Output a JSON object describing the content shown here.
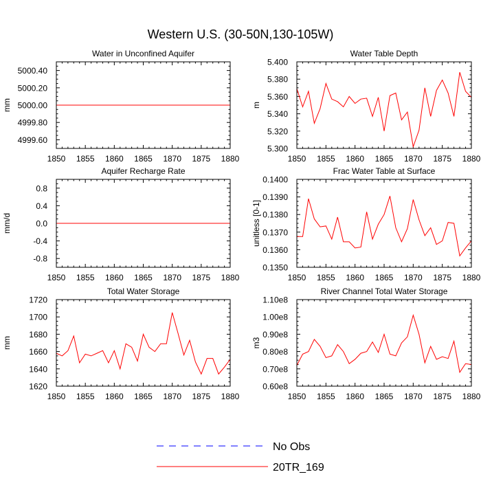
{
  "title": "Western U.S. (30-50N,130-105W)",
  "colors": {
    "model": "#ff0000",
    "obs": "#0000ff",
    "axis": "#000000"
  },
  "legend": {
    "placement": "bottom-center",
    "entries": [
      {
        "label": "No Obs",
        "style": "dashed",
        "color": "#0000ff"
      },
      {
        "label": "20TR_169",
        "style": "solid",
        "color": "#ff0000"
      }
    ]
  },
  "chart_data": [
    {
      "type": "line",
      "title": "Water in Unconfined Aquifer",
      "ylabel": "mm",
      "xlim": [
        1850,
        1880
      ],
      "ylim": [
        4999.5,
        5000.5
      ],
      "xticks": [
        1850,
        1855,
        1860,
        1865,
        1870,
        1875,
        1880
      ],
      "xtick_labels": [
        "1850",
        "1855",
        "1860",
        "1865",
        "1870",
        "1875",
        "1880"
      ],
      "yticks": [
        4999.6,
        4999.8,
        5000.0,
        5000.2,
        5000.4
      ],
      "ytick_labels": [
        "4999.60",
        "4999.80",
        "5000.00",
        "5000.20",
        "5000.40"
      ],
      "series": [
        {
          "name": "20TR_169",
          "x": [
            1850,
            1880
          ],
          "values": [
            5000.0,
            5000.0
          ]
        }
      ]
    },
    {
      "type": "line",
      "title": "Water Table Depth",
      "ylabel": "m",
      "xlim": [
        1850,
        1880
      ],
      "ylim": [
        5.3,
        5.4
      ],
      "xticks": [
        1850,
        1855,
        1860,
        1865,
        1870,
        1875,
        1880
      ],
      "xtick_labels": [
        "1850",
        "1855",
        "1860",
        "1865",
        "1870",
        "1875",
        "1880"
      ],
      "yticks": [
        5.3,
        5.32,
        5.34,
        5.36,
        5.38,
        5.4
      ],
      "ytick_labels": [
        "5.300",
        "5.320",
        "5.340",
        "5.360",
        "5.380",
        "5.400"
      ],
      "series": [
        {
          "name": "20TR_169",
          "x": [
            1850,
            1851,
            1852,
            1853,
            1854,
            1855,
            1856,
            1857,
            1858,
            1859,
            1860,
            1861,
            1862,
            1863,
            1864,
            1865,
            1866,
            1867,
            1868,
            1869,
            1870,
            1871,
            1872,
            1873,
            1874,
            1875,
            1876,
            1877,
            1878,
            1879,
            1880
          ],
          "values": [
            5.369,
            5.348,
            5.366,
            5.329,
            5.346,
            5.375,
            5.357,
            5.354,
            5.348,
            5.36,
            5.352,
            5.357,
            5.358,
            5.337,
            5.359,
            5.32,
            5.361,
            5.364,
            5.333,
            5.342,
            5.302,
            5.321,
            5.37,
            5.337,
            5.367,
            5.379,
            5.364,
            5.337,
            5.388,
            5.366,
            5.359
          ]
        }
      ]
    },
    {
      "type": "line",
      "title": "Aquifer Recharge Rate",
      "ylabel": "mm/d",
      "xlim": [
        1850,
        1880
      ],
      "ylim": [
        -1.0,
        1.0
      ],
      "xticks": [
        1850,
        1855,
        1860,
        1865,
        1870,
        1875,
        1880
      ],
      "xtick_labels": [
        "1850",
        "1855",
        "1860",
        "1865",
        "1870",
        "1875",
        "1880"
      ],
      "yticks": [
        -0.8,
        -0.4,
        0.0,
        0.4,
        0.8
      ],
      "ytick_labels": [
        "-0.8",
        "-0.4",
        "0.0",
        "0.4",
        "0.8"
      ],
      "series": [
        {
          "name": "20TR_169",
          "x": [
            1850,
            1880
          ],
          "values": [
            0.0,
            0.0
          ]
        }
      ]
    },
    {
      "type": "line",
      "title": "Frac Water Table at Surface",
      "ylabel": "unitless [0-1]",
      "xlim": [
        1850,
        1880
      ],
      "ylim": [
        0.135,
        0.14
      ],
      "xticks": [
        1850,
        1855,
        1860,
        1865,
        1870,
        1875,
        1880
      ],
      "xtick_labels": [
        "1850",
        "1855",
        "1860",
        "1865",
        "1870",
        "1875",
        "1880"
      ],
      "yticks": [
        0.135,
        0.136,
        0.137,
        0.138,
        0.139,
        0.14
      ],
      "ytick_labels": [
        "0.1350",
        "0.1360",
        "0.1370",
        "0.1380",
        "0.1390",
        "0.1400"
      ],
      "series": [
        {
          "name": "20TR_169",
          "x": [
            1850,
            1851,
            1852,
            1853,
            1854,
            1855,
            1856,
            1857,
            1858,
            1859,
            1860,
            1861,
            1862,
            1863,
            1864,
            1865,
            1866,
            1867,
            1868,
            1869,
            1870,
            1871,
            1872,
            1873,
            1874,
            1875,
            1876,
            1877,
            1878,
            1879,
            1880
          ],
          "values": [
            0.13675,
            0.13675,
            0.1389,
            0.13775,
            0.1373,
            0.13735,
            0.1366,
            0.13785,
            0.13645,
            0.13645,
            0.1361,
            0.13615,
            0.13815,
            0.1366,
            0.13745,
            0.138,
            0.13905,
            0.13725,
            0.13645,
            0.1372,
            0.13885,
            0.1377,
            0.1368,
            0.13725,
            0.1363,
            0.1365,
            0.13755,
            0.1375,
            0.13565,
            0.1361,
            0.1365
          ]
        }
      ]
    },
    {
      "type": "line",
      "title": "Total Water Storage",
      "ylabel": "mm",
      "xlim": [
        1850,
        1880
      ],
      "ylim": [
        1620,
        1720
      ],
      "xticks": [
        1850,
        1855,
        1860,
        1865,
        1870,
        1875,
        1880
      ],
      "xtick_labels": [
        "1850",
        "1855",
        "1860",
        "1865",
        "1870",
        "1875",
        "1880"
      ],
      "yticks": [
        1620,
        1640,
        1660,
        1680,
        1700,
        1720
      ],
      "ytick_labels": [
        "1620",
        "1640",
        "1660",
        "1680",
        "1700",
        "1720"
      ],
      "series": [
        {
          "name": "20TR_169",
          "x": [
            1850,
            1851,
            1852,
            1853,
            1854,
            1855,
            1856,
            1857,
            1858,
            1859,
            1860,
            1861,
            1862,
            1863,
            1864,
            1865,
            1866,
            1867,
            1868,
            1869,
            1870,
            1871,
            1872,
            1873,
            1874,
            1875,
            1876,
            1877,
            1878,
            1879,
            1880
          ],
          "values": [
            1658,
            1655,
            1661,
            1678,
            1647,
            1657,
            1655,
            1658,
            1661,
            1647,
            1661,
            1640,
            1669,
            1665,
            1649,
            1680,
            1665,
            1660,
            1669,
            1669,
            1705,
            1681,
            1656,
            1673,
            1648,
            1634,
            1652,
            1652,
            1634,
            1642,
            1651
          ]
        }
      ]
    },
    {
      "type": "line",
      "title": "River Channel Total Water Storage",
      "ylabel": "m3",
      "xlim": [
        1850,
        1880
      ],
      "ylim": [
        60000000.0,
        110000000.0
      ],
      "xticks": [
        1850,
        1855,
        1860,
        1865,
        1870,
        1875,
        1880
      ],
      "xtick_labels": [
        "1850",
        "1855",
        "1860",
        "1865",
        "1870",
        "1875",
        "1880"
      ],
      "yticks": [
        60000000.0,
        70000000.0,
        80000000.0,
        90000000.0,
        100000000.0,
        110000000.0
      ],
      "ytick_labels": [
        "0.60e8",
        "0.70e8",
        "0.80e8",
        "0.90e8",
        "1.00e8",
        "1.10e8"
      ],
      "series": [
        {
          "name": "20TR_169",
          "x": [
            1850,
            1851,
            1852,
            1853,
            1854,
            1855,
            1856,
            1857,
            1858,
            1859,
            1860,
            1861,
            1862,
            1863,
            1864,
            1865,
            1866,
            1867,
            1868,
            1869,
            1870,
            1871,
            1872,
            1873,
            1874,
            1875,
            1876,
            1877,
            1878,
            1879,
            1880
          ],
          "values": [
            72000000.0,
            78500000.0,
            80000000.0,
            87000000.0,
            83000000.0,
            76500000.0,
            77500000.0,
            84000000.0,
            80000000.0,
            73000000.0,
            75500000.0,
            79000000.0,
            80000000.0,
            85500000.0,
            79500000.0,
            90000000.0,
            78500000.0,
            77500000.0,
            85000000.0,
            88500000.0,
            101000000.0,
            90000000.0,
            73500000.0,
            83000000.0,
            75500000.0,
            77000000.0,
            76000000.0,
            86000000.0,
            68000000.0,
            73000000.0,
            72500000.0
          ]
        }
      ]
    }
  ]
}
